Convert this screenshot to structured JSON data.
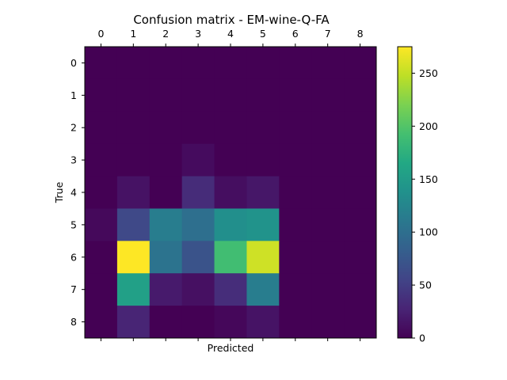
{
  "chart_data": {
    "type": "heatmap",
    "title": "Confusion matrix - EM-wine-Q-FA",
    "xlabel": "Predicted",
    "ylabel": "True",
    "x_categories": [
      "0",
      "1",
      "2",
      "3",
      "4",
      "5",
      "6",
      "7",
      "8"
    ],
    "y_categories": [
      "0",
      "1",
      "2",
      "3",
      "4",
      "5",
      "6",
      "7",
      "8"
    ],
    "values": [
      [
        0,
        0,
        0,
        0,
        0,
        0,
        0,
        0,
        0
      ],
      [
        0,
        0,
        0,
        0,
        0,
        0,
        0,
        0,
        0
      ],
      [
        0,
        0,
        0,
        0,
        0,
        0,
        0,
        0,
        0
      ],
      [
        0,
        0,
        0,
        8,
        0,
        0,
        0,
        0,
        0
      ],
      [
        0,
        13,
        0,
        34,
        10,
        17,
        0,
        0,
        0
      ],
      [
        6,
        60,
        115,
        100,
        135,
        140,
        0,
        0,
        0
      ],
      [
        0,
        275,
        105,
        70,
        190,
        255,
        0,
        0,
        0
      ],
      [
        0,
        155,
        20,
        12,
        35,
        115,
        0,
        0,
        0
      ],
      [
        0,
        28,
        0,
        0,
        5,
        14,
        0,
        0,
        0
      ]
    ],
    "colormap": "viridis",
    "colorbar_range": [
      0,
      275
    ],
    "colorbar_ticks": [
      0,
      50,
      100,
      150,
      200,
      250
    ],
    "x_tick_position": "top"
  }
}
